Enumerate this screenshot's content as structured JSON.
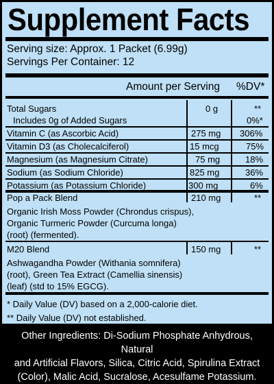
{
  "title": "Supplement Facts",
  "serving_size": "Serving size: Approx. 1 Packet (6.99g)",
  "servings_per_container": "Servings Per Container: 12",
  "header": {
    "amount": "Amount per Serving",
    "dv": "%DV*"
  },
  "rows": [
    {
      "name": "Total Sugars",
      "amount": "0 g",
      "dv": "**"
    },
    {
      "name": "Includes 0g of Added Sugars",
      "amount": "",
      "dv": "0%*"
    },
    {
      "name": "Vitamin C (as Ascorbic Acid)",
      "amount": "275 mg",
      "dv": "306%"
    },
    {
      "name": "Vitamin D3 (as Cholecalciferol)",
      "amount": "15 mcg",
      "dv": "75%"
    },
    {
      "name": "Magnesium (as Magnesium Citrate)",
      "amount": "75 mg",
      "dv": "18%"
    },
    {
      "name": "Sodium (as Sodium Chloride)",
      "amount": "825 mg",
      "dv": "36%"
    },
    {
      "name": "Potassium (as Potassium Chloride)",
      "amount": "300 mg",
      "dv": "6%"
    }
  ],
  "blends": [
    {
      "name": "Pop a Pack Blend",
      "amount": "210 mg",
      "dv": "**",
      "ingredients": [
        "Organic Irish Moss Powder (Chrondus crispus),",
        "Organic Turmeric Powder (Curcuma longa)",
        "(root) (fermented)."
      ]
    },
    {
      "name": "M20 Blend",
      "amount": "150 mg",
      "dv": "**",
      "ingredients": [
        "Ashwagandha Powder (Withania somnifera)",
        "(root), Green Tea Extract (Camellia sinensis)",
        "(leaf) (std to 15% EGCG)."
      ]
    }
  ],
  "footnotes": [
    "*  Daily Value (DV) based on a 2,000-calorie diet.",
    "** Daily Value (DV) not established."
  ],
  "other_ingredients": [
    "Other Ingredients: Di-Sodium Phosphate Anhydrous, Natural",
    "and Artificial Flavors, Silica, Citric Acid, Spirulina Extract",
    "(Color), Malic Acid, Sucralose, Acesulfame Potassium."
  ],
  "colors": {
    "panel_bg": "#bfe0f6",
    "footer_bg": "#000000",
    "text": "#000000",
    "footer_text": "#ffffff"
  }
}
